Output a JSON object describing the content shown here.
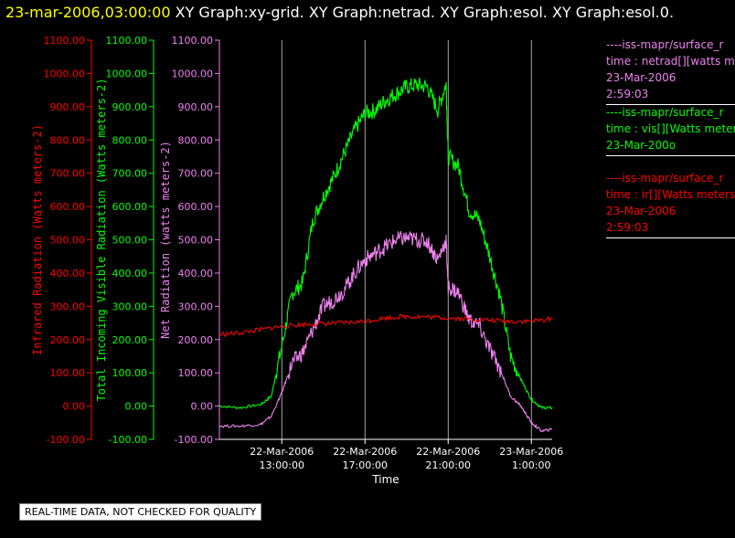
{
  "header": {
    "timestamp": "23-mar-2006,03:00:00",
    "graphs": "XY Graph:xy-grid.  XY Graph:netrad.  XY Graph:esol.  XY Graph:esol.0."
  },
  "legend": [
    {
      "lines": [
        "----iss-mapr/surface_r",
        "time : netrad[][watts me",
        "23-Mar-2006",
        "2:59:03"
      ],
      "color": "#ee82ee"
    },
    {
      "lines": [
        "----iss-mapr/surface_r",
        "time : vis[][Watts meter",
        "23-Mar-200o"
      ],
      "color": "#00ff00"
    },
    {
      "lines": [
        "----iss-mapr/surface_r",
        "time : ir[][Watts meters",
        "23-Mar-2006",
        "2:59:03"
      ],
      "color": "#ff0000"
    }
  ],
  "quality_note": "REAL-TIME DATA, NOT CHECKED FOR QUALITY",
  "chart_data": {
    "type": "line",
    "xlabel": "Time",
    "x_ticks": [
      {
        "date": "22-Mar-2006",
        "time": "13:00:00"
      },
      {
        "date": "22-Mar-2006",
        "time": "17:00:00"
      },
      {
        "date": "22-Mar-2006",
        "time": "21:00:00"
      },
      {
        "date": "23-Mar-2006",
        "time": "1:00:00"
      }
    ],
    "xlim_hours": [
      10.0,
      26.0
    ],
    "y_ticks": [
      "1100.00",
      "1000.00",
      "900.00",
      "800.00",
      "700.00",
      "600.00",
      "500.00",
      "400.00",
      "300.00",
      "200.00",
      "100.00",
      "0.00",
      "-100.00"
    ],
    "ylim": [
      -100,
      1100
    ],
    "axes": [
      {
        "label": "Infrared Radiation (Watts meters-2)",
        "color": "#ff0000"
      },
      {
        "label": "Total Incoming Visible Radiation (Watts meters-2)",
        "color": "#00ff00"
      },
      {
        "label": "Net Radiation (watts meters-2)",
        "color": "#ee82ee"
      }
    ],
    "series": [
      {
        "color": "#00ff00",
        "x": [
          10,
          11,
          12,
          12.5,
          13,
          13.5,
          14,
          14.5,
          15,
          15.5,
          16,
          16.5,
          17,
          17.5,
          18,
          18.5,
          19,
          19.5,
          20,
          20.5,
          20.9,
          21,
          21.5,
          22,
          22.5,
          23,
          23.5,
          24,
          24.5,
          25,
          25.5,
          26
        ],
        "y": [
          0,
          -5,
          5,
          30,
          180,
          340,
          370,
          560,
          630,
          690,
          760,
          830,
          880,
          890,
          920,
          940,
          960,
          965,
          960,
          890,
          970,
          750,
          720,
          590,
          560,
          450,
          330,
          150,
          80,
          20,
          -5,
          -5
        ]
      },
      {
        "color": "#ee82ee",
        "x": [
          10,
          11,
          12,
          12.5,
          13,
          13.5,
          14,
          14.5,
          15,
          15.5,
          16,
          16.5,
          17,
          17.5,
          18,
          18.5,
          19,
          19.5,
          20,
          20.5,
          20.9,
          21,
          21.5,
          22,
          22.5,
          23,
          23.5,
          24,
          24.5,
          25,
          25.5,
          26
        ],
        "y": [
          -60,
          -60,
          -55,
          -30,
          40,
          130,
          160,
          230,
          300,
          320,
          350,
          400,
          440,
          460,
          480,
          500,
          505,
          500,
          495,
          440,
          500,
          360,
          340,
          260,
          240,
          170,
          110,
          30,
          0,
          -50,
          -75,
          -70
        ]
      },
      {
        "color": "#ff0000",
        "x": [
          10,
          11,
          12,
          13,
          14,
          15,
          16,
          17,
          18,
          19,
          20,
          21,
          22,
          23,
          24,
          25,
          26
        ],
        "y": [
          215,
          220,
          230,
          240,
          245,
          248,
          250,
          255,
          265,
          270,
          268,
          265,
          262,
          258,
          255,
          255,
          262
        ]
      }
    ]
  }
}
